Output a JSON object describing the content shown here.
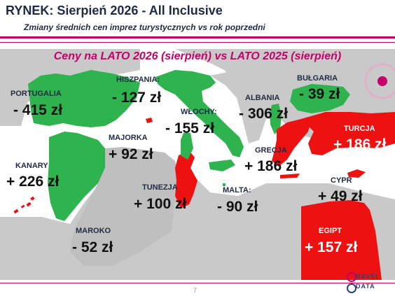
{
  "header": {
    "title": "RYNEK: Sierpień 2026 - All Inclusive",
    "subtitle": "Zmiany średnich cen imprez turystycznych vs rok poprzedni"
  },
  "map_subtitle": "Ceny na LATO 2026 (sierpień) vs  LATO 2025 (sierpień)",
  "regions": [
    {
      "name": "PORTUGALIA",
      "change": "- 415 zł",
      "trend": "down"
    },
    {
      "name": "HISZPANIA:",
      "change": "- 127 zł",
      "trend": "down"
    },
    {
      "name": "MAJORKA",
      "change": "+ 92 zł",
      "trend": "up"
    },
    {
      "name": "WŁOCHY:",
      "change": "- 155 zł",
      "trend": "down"
    },
    {
      "name": "ALBANIA",
      "change": "- 306 zł",
      "trend": "down"
    },
    {
      "name": "BUŁGARIA",
      "change": "- 39 zł",
      "trend": "down"
    },
    {
      "name": "TURCJA",
      "change": "+ 186 zł",
      "trend": "up"
    },
    {
      "name": "KANARY",
      "change": "+ 226 zł",
      "trend": "up"
    },
    {
      "name": "GRECJA",
      "change": "+ 186 zł",
      "trend": "up"
    },
    {
      "name": "TUNEZJA",
      "change": "+ 100 zł",
      "trend": "up"
    },
    {
      "name": "MALTA:",
      "change": "- 90 zł",
      "trend": "down"
    },
    {
      "name": "CYPR",
      "change": "+ 49 zł",
      "trend": "up"
    },
    {
      "name": "MAROKO",
      "change": "- 52 zł",
      "trend": "down"
    },
    {
      "name": "EGIPT",
      "change": "+ 157 zł",
      "trend": "up"
    }
  ],
  "colors": {
    "brand": "#c4006a",
    "decrease": "#2fb34e",
    "increase": "#ee1111",
    "land": "#c9c9c9",
    "sea": "#ffffff"
  },
  "footer": {
    "page_number": "7",
    "logo_line1": "RAVEL",
    "logo_line2": "DATA"
  }
}
